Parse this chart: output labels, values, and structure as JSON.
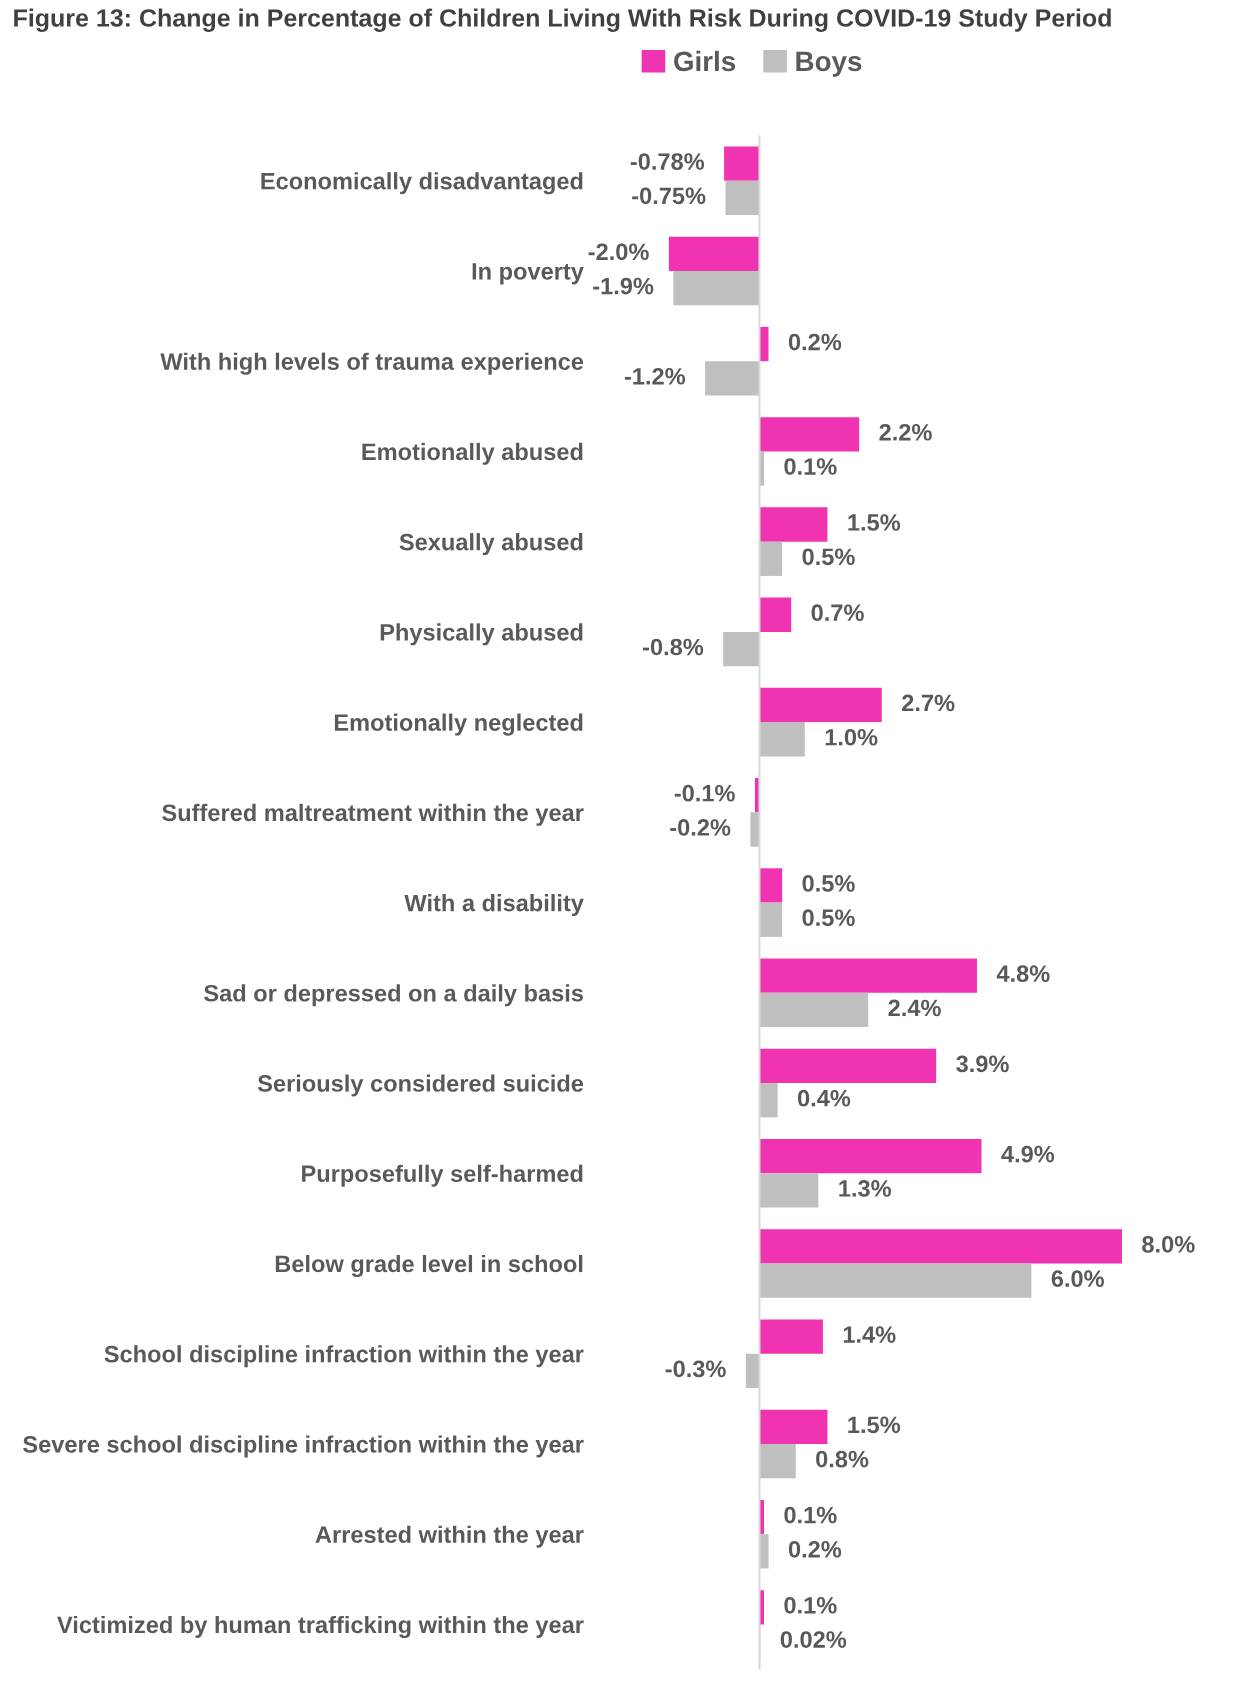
{
  "chart_data": {
    "type": "bar",
    "orientation": "horizontal",
    "title": "Figure 13: Change in Percentage of Children Living With Risk During COVID-19 Study Period",
    "categories": [
      "Economically disadvantaged",
      "In poverty",
      "With high levels of trauma experience",
      "Emotionally abused",
      "Sexually abused",
      "Physically abused",
      "Emotionally neglected",
      "Suffered maltreatment within the year",
      "With a disability",
      "Sad or depressed on a daily basis",
      "Seriously considered suicide",
      "Purposefully self-harmed",
      "Below grade level in school",
      "School discipline infraction within the year",
      "Severe school discipline infraction within the year",
      "Arrested within the year",
      "Victimized by human trafficking within the year"
    ],
    "series": [
      {
        "name": "Girls",
        "color": "#f033b0",
        "values": [
          -0.78,
          -2.0,
          0.2,
          2.2,
          1.5,
          0.7,
          2.7,
          -0.1,
          0.5,
          4.8,
          3.9,
          4.9,
          8.0,
          1.4,
          1.5,
          0.1,
          0.1
        ],
        "value_labels": [
          "-0.78%",
          "-2.0%",
          "0.2%",
          "2.2%",
          "1.5%",
          "0.7%",
          "2.7%",
          "-0.1%",
          "0.5%",
          "4.8%",
          "3.9%",
          "4.9%",
          "8.0%",
          "1.4%",
          "1.5%",
          "0.1%",
          "0.1%"
        ]
      },
      {
        "name": "Boys",
        "color": "#bfbfbf",
        "values": [
          -0.75,
          -1.9,
          -1.2,
          0.1,
          0.5,
          -0.8,
          1.0,
          -0.2,
          0.5,
          2.4,
          0.4,
          1.3,
          6.0,
          -0.3,
          0.8,
          0.2,
          0.02
        ],
        "value_labels": [
          "-0.75%",
          "-1.9%",
          "-1.2%",
          "0.1%",
          "0.5%",
          "-0.8%",
          "1.0%",
          "-0.2%",
          "0.5%",
          "2.4%",
          "0.4%",
          "1.3%",
          "6.0%",
          "-0.3%",
          "0.8%",
          "0.2%",
          "0.02%"
        ]
      }
    ],
    "legend": "top",
    "grid": false
  }
}
